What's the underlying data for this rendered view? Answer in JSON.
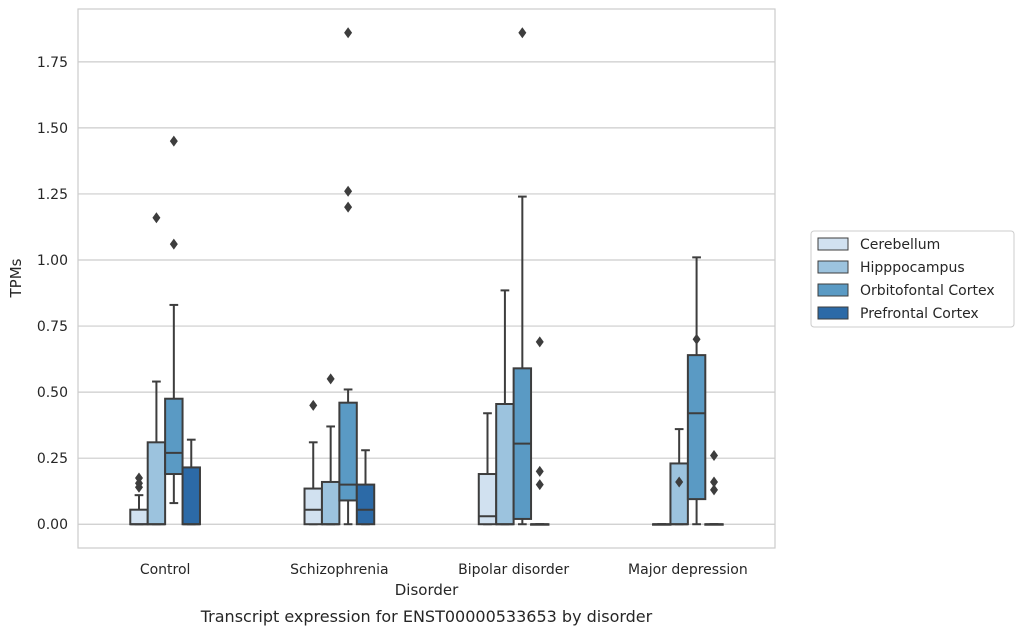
{
  "chart_data": {
    "type": "box",
    "caption": "Transcript expression for ENST00000533653 by disorder",
    "xlabel": "Disorder",
    "ylabel": "TPMs",
    "ylim": [
      -0.09,
      1.95
    ],
    "yticks": [
      "0.00",
      "0.25",
      "0.50",
      "0.75",
      "1.00",
      "1.25",
      "1.50",
      "1.75"
    ],
    "grid": "horizontal",
    "legend_position": "right",
    "categories": [
      "Control",
      "Schizophrenia",
      "Bipolar disorder",
      "Major depression"
    ],
    "series": [
      {
        "name": "Cerebellum",
        "color": "#d1e1f0",
        "boxes": [
          {
            "whislo": 0.0,
            "q1": 0.0,
            "med": 0.0,
            "q3": 0.055,
            "whishi": 0.11,
            "fliers": [
              0.14,
              0.155,
              0.175
            ]
          },
          {
            "whislo": 0.0,
            "q1": 0.0,
            "med": 0.055,
            "q3": 0.135,
            "whishi": 0.31,
            "fliers": [
              0.45
            ]
          },
          {
            "whislo": 0.0,
            "q1": 0.0,
            "med": 0.03,
            "q3": 0.19,
            "whishi": 0.42,
            "fliers": []
          },
          {
            "whislo": 0.0,
            "q1": 0.0,
            "med": 0.0,
            "q3": 0.0,
            "whishi": 0.0,
            "fliers": []
          }
        ]
      },
      {
        "name": "Hipppocampus",
        "color": "#9cc3de",
        "boxes": [
          {
            "whislo": 0.0,
            "q1": 0.0,
            "med": 0.0,
            "q3": 0.31,
            "whishi": 0.54,
            "fliers": [
              1.16
            ]
          },
          {
            "whislo": 0.0,
            "q1": 0.0,
            "med": 0.0,
            "q3": 0.16,
            "whishi": 0.37,
            "fliers": [
              0.55
            ]
          },
          {
            "whislo": 0.0,
            "q1": 0.0,
            "med": 0.0,
            "q3": 0.455,
            "whishi": 0.885,
            "fliers": []
          },
          {
            "whislo": 0.0,
            "q1": 0.0,
            "med": 0.0,
            "q3": 0.23,
            "whishi": 0.36,
            "fliers": [
              0.16
            ]
          }
        ]
      },
      {
        "name": "Orbitofontal Cortex",
        "color": "#5a9ac4",
        "boxes": [
          {
            "whislo": 0.08,
            "q1": 0.19,
            "med": 0.27,
            "q3": 0.475,
            "whishi": 0.83,
            "fliers": [
              1.06,
              1.45
            ]
          },
          {
            "whislo": 0.0,
            "q1": 0.09,
            "med": 0.15,
            "q3": 0.46,
            "whishi": 0.51,
            "fliers": [
              1.2,
              1.26,
              1.86
            ]
          },
          {
            "whislo": 0.0,
            "q1": 0.02,
            "med": 0.305,
            "q3": 0.59,
            "whishi": 1.24,
            "fliers": [
              1.86
            ]
          },
          {
            "whislo": 0.0,
            "q1": 0.095,
            "med": 0.42,
            "q3": 0.64,
            "whishi": 1.01,
            "fliers": [
              0.7
            ]
          }
        ]
      },
      {
        "name": "Prefrontal Cortex",
        "color": "#2c6aa7",
        "boxes": [
          {
            "whislo": 0.0,
            "q1": 0.0,
            "med": 0.0,
            "q3": 0.215,
            "whishi": 0.32,
            "fliers": []
          },
          {
            "whislo": 0.0,
            "q1": 0.0,
            "med": 0.055,
            "q3": 0.15,
            "whishi": 0.28,
            "fliers": []
          },
          {
            "whislo": 0.0,
            "q1": 0.0,
            "med": 0.0,
            "q3": 0.0,
            "whishi": 0.0,
            "fliers": [
              0.15,
              0.2,
              0.69
            ]
          },
          {
            "whislo": 0.0,
            "q1": 0.0,
            "med": 0.0,
            "q3": 0.0,
            "whishi": 0.0,
            "fliers": [
              0.13,
              0.16,
              0.26
            ]
          }
        ]
      }
    ]
  }
}
